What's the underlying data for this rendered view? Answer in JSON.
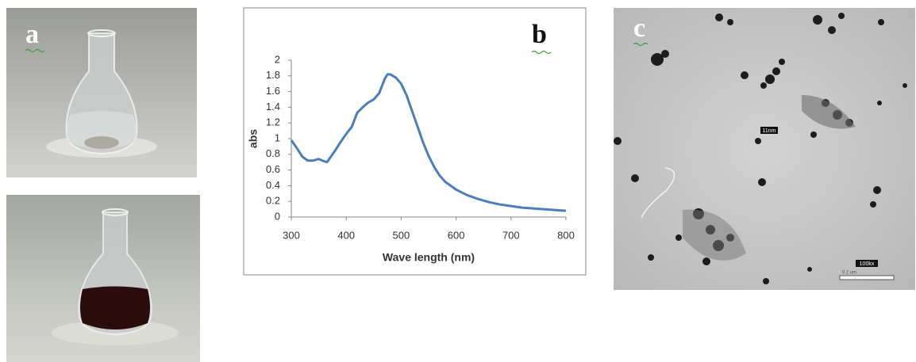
{
  "panels": {
    "a": "a",
    "b": "b",
    "c": "c"
  },
  "tem": {
    "size_label": "11nm",
    "magnification": "100kx",
    "scale_label": "0.2 um"
  },
  "chart_data": {
    "type": "line",
    "x_label": "Wave length (nm)",
    "y_label": "abs",
    "x": [
      300,
      310,
      320,
      330,
      340,
      350,
      360,
      365,
      370,
      380,
      390,
      400,
      410,
      420,
      430,
      440,
      450,
      460,
      470,
      475,
      480,
      490,
      500,
      510,
      520,
      530,
      540,
      550,
      560,
      570,
      580,
      600,
      620,
      640,
      660,
      680,
      700,
      720,
      740,
      760,
      780,
      800
    ],
    "series": [
      {
        "name": "abs",
        "color": "#4a7ebb",
        "values": [
          0.98,
          0.88,
          0.77,
          0.72,
          0.72,
          0.74,
          0.71,
          0.7,
          0.75,
          0.85,
          0.96,
          1.06,
          1.15,
          1.33,
          1.4,
          1.46,
          1.5,
          1.58,
          1.76,
          1.82,
          1.82,
          1.78,
          1.7,
          1.55,
          1.35,
          1.15,
          0.95,
          0.78,
          0.64,
          0.53,
          0.45,
          0.35,
          0.28,
          0.23,
          0.19,
          0.16,
          0.14,
          0.12,
          0.11,
          0.1,
          0.09,
          0.08
        ]
      }
    ],
    "xlim": [
      300,
      800
    ],
    "xticks": [
      300,
      400,
      500,
      600,
      700,
      800
    ],
    "ylim": [
      0,
      2
    ],
    "yticks": [
      0,
      0.2,
      0.4,
      0.6,
      0.8,
      1,
      1.2,
      1.4,
      1.6,
      1.8,
      2
    ],
    "grid": false,
    "legend": false
  }
}
